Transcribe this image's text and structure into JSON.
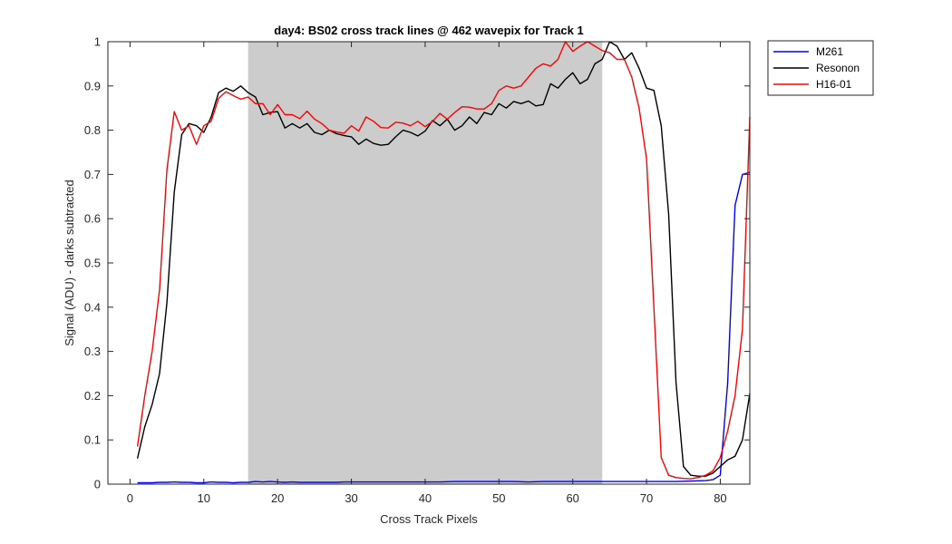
{
  "chart_data": {
    "type": "line",
    "title": "day4: BS02  cross track lines @ 462 wavepix for Track 1",
    "xlabel": "Cross Track Pixels",
    "ylabel": "Signal (ADU) - darks subtracted",
    "xlim": [
      -3,
      84
    ],
    "ylim": [
      0,
      1
    ],
    "xticks": [
      0,
      10,
      20,
      30,
      40,
      50,
      60,
      70,
      80
    ],
    "yticks": [
      0,
      0.1,
      0.2,
      0.3,
      0.4,
      0.5,
      0.6,
      0.7,
      0.8,
      0.9,
      1
    ],
    "ytick_labels": [
      "0",
      "0.1",
      "0.2",
      "0.3",
      "0.4",
      "0.5",
      "0.6",
      "0.7",
      "0.8",
      "0.9",
      "1"
    ],
    "grid": false,
    "legend_position": "outside-top-right",
    "shaded_region": {
      "x0": 16,
      "x1": 64,
      "color": "#cccccc"
    },
    "series": [
      {
        "name": "M261",
        "color": "#0000ff",
        "points": [
          [
            1,
            0.003
          ],
          [
            2,
            0.003
          ],
          [
            3,
            0.003
          ],
          [
            4,
            0.004
          ],
          [
            5,
            0.004
          ],
          [
            6,
            0.005
          ],
          [
            7,
            0.004
          ],
          [
            8,
            0.004
          ],
          [
            9,
            0.003
          ],
          [
            10,
            0.003
          ],
          [
            11,
            0.005
          ],
          [
            12,
            0.004
          ],
          [
            13,
            0.004
          ],
          [
            14,
            0.003
          ],
          [
            15,
            0.004
          ],
          [
            16,
            0.004
          ],
          [
            17,
            0.006
          ],
          [
            18,
            0.005
          ],
          [
            19,
            0.006
          ],
          [
            20,
            0.005
          ],
          [
            21,
            0.004
          ],
          [
            22,
            0.005
          ],
          [
            23,
            0.004
          ],
          [
            24,
            0.004
          ],
          [
            25,
            0.004
          ],
          [
            26,
            0.004
          ],
          [
            27,
            0.004
          ],
          [
            28,
            0.004
          ],
          [
            29,
            0.005
          ],
          [
            30,
            0.005
          ],
          [
            32,
            0.005
          ],
          [
            34,
            0.005
          ],
          [
            36,
            0.005
          ],
          [
            38,
            0.005
          ],
          [
            40,
            0.005
          ],
          [
            42,
            0.005
          ],
          [
            44,
            0.006
          ],
          [
            46,
            0.006
          ],
          [
            48,
            0.006
          ],
          [
            50,
            0.006
          ],
          [
            52,
            0.006
          ],
          [
            54,
            0.005
          ],
          [
            56,
            0.006
          ],
          [
            58,
            0.006
          ],
          [
            60,
            0.006
          ],
          [
            62,
            0.006
          ],
          [
            64,
            0.006
          ],
          [
            66,
            0.006
          ],
          [
            68,
            0.006
          ],
          [
            70,
            0.006
          ],
          [
            72,
            0.006
          ],
          [
            74,
            0.006
          ],
          [
            76,
            0.007
          ],
          [
            78,
            0.008
          ],
          [
            79,
            0.01
          ],
          [
            80,
            0.02
          ],
          [
            81,
            0.23
          ],
          [
            82,
            0.63
          ],
          [
            83,
            0.7
          ],
          [
            84,
            0.705
          ]
        ]
      },
      {
        "name": "Resonon",
        "color": "#000000",
        "points": [
          [
            1,
            0.058
          ],
          [
            2,
            0.13
          ],
          [
            3,
            0.18
          ],
          [
            4,
            0.25
          ],
          [
            5,
            0.41
          ],
          [
            6,
            0.66
          ],
          [
            7,
            0.79
          ],
          [
            8,
            0.815
          ],
          [
            9,
            0.81
          ],
          [
            10,
            0.795
          ],
          [
            11,
            0.83
          ],
          [
            12,
            0.885
          ],
          [
            13,
            0.895
          ],
          [
            14,
            0.888
          ],
          [
            15,
            0.9
          ],
          [
            16,
            0.885
          ],
          [
            17,
            0.875
          ],
          [
            18,
            0.835
          ],
          [
            19,
            0.84
          ],
          [
            20,
            0.842
          ],
          [
            21,
            0.805
          ],
          [
            22,
            0.815
          ],
          [
            23,
            0.805
          ],
          [
            24,
            0.815
          ],
          [
            25,
            0.795
          ],
          [
            26,
            0.79
          ],
          [
            27,
            0.8
          ],
          [
            28,
            0.792
          ],
          [
            29,
            0.788
          ],
          [
            30,
            0.785
          ],
          [
            31,
            0.768
          ],
          [
            32,
            0.78
          ],
          [
            33,
            0.77
          ],
          [
            34,
            0.766
          ],
          [
            35,
            0.768
          ],
          [
            36,
            0.785
          ],
          [
            37,
            0.8
          ],
          [
            38,
            0.795
          ],
          [
            39,
            0.787
          ],
          [
            40,
            0.798
          ],
          [
            41,
            0.822
          ],
          [
            42,
            0.81
          ],
          [
            43,
            0.825
          ],
          [
            44,
            0.8
          ],
          [
            45,
            0.81
          ],
          [
            46,
            0.83
          ],
          [
            47,
            0.815
          ],
          [
            48,
            0.84
          ],
          [
            49,
            0.835
          ],
          [
            50,
            0.86
          ],
          [
            51,
            0.85
          ],
          [
            52,
            0.865
          ],
          [
            53,
            0.86
          ],
          [
            54,
            0.866
          ],
          [
            55,
            0.855
          ],
          [
            56,
            0.858
          ],
          [
            57,
            0.905
          ],
          [
            58,
            0.895
          ],
          [
            59,
            0.915
          ],
          [
            60,
            0.93
          ],
          [
            61,
            0.905
          ],
          [
            62,
            0.915
          ],
          [
            63,
            0.95
          ],
          [
            64,
            0.96
          ],
          [
            65,
            1.0
          ],
          [
            66,
            0.99
          ],
          [
            67,
            0.96
          ],
          [
            68,
            0.975
          ],
          [
            69,
            0.94
          ],
          [
            70,
            0.895
          ],
          [
            71,
            0.89
          ],
          [
            72,
            0.81
          ],
          [
            73,
            0.61
          ],
          [
            74,
            0.23
          ],
          [
            75,
            0.04
          ],
          [
            76,
            0.02
          ],
          [
            77,
            0.018
          ],
          [
            78,
            0.018
          ],
          [
            79,
            0.025
          ],
          [
            80,
            0.04
          ],
          [
            81,
            0.055
          ],
          [
            82,
            0.063
          ],
          [
            83,
            0.1
          ],
          [
            84,
            0.205
          ]
        ]
      },
      {
        "name": "H16-01",
        "color": "#ff0000",
        "points": [
          [
            1,
            0.085
          ],
          [
            2,
            0.2
          ],
          [
            3,
            0.3
          ],
          [
            4,
            0.44
          ],
          [
            5,
            0.71
          ],
          [
            6,
            0.842
          ],
          [
            7,
            0.8
          ],
          [
            8,
            0.81
          ],
          [
            9,
            0.768
          ],
          [
            10,
            0.81
          ],
          [
            11,
            0.82
          ],
          [
            12,
            0.872
          ],
          [
            13,
            0.887
          ],
          [
            14,
            0.878
          ],
          [
            15,
            0.87
          ],
          [
            16,
            0.875
          ],
          [
            17,
            0.86
          ],
          [
            18,
            0.86
          ],
          [
            19,
            0.835
          ],
          [
            20,
            0.858
          ],
          [
            21,
            0.835
          ],
          [
            22,
            0.835
          ],
          [
            23,
            0.826
          ],
          [
            24,
            0.843
          ],
          [
            25,
            0.825
          ],
          [
            26,
            0.815
          ],
          [
            27,
            0.8
          ],
          [
            28,
            0.796
          ],
          [
            29,
            0.793
          ],
          [
            30,
            0.81
          ],
          [
            31,
            0.798
          ],
          [
            32,
            0.83
          ],
          [
            33,
            0.82
          ],
          [
            34,
            0.806
          ],
          [
            35,
            0.805
          ],
          [
            36,
            0.818
          ],
          [
            37,
            0.816
          ],
          [
            38,
            0.81
          ],
          [
            39,
            0.82
          ],
          [
            40,
            0.808
          ],
          [
            41,
            0.82
          ],
          [
            42,
            0.838
          ],
          [
            43,
            0.825
          ],
          [
            44,
            0.84
          ],
          [
            45,
            0.853
          ],
          [
            46,
            0.852
          ],
          [
            47,
            0.848
          ],
          [
            48,
            0.848
          ],
          [
            49,
            0.86
          ],
          [
            50,
            0.89
          ],
          [
            51,
            0.9
          ],
          [
            52,
            0.895
          ],
          [
            53,
            0.9
          ],
          [
            54,
            0.92
          ],
          [
            55,
            0.94
          ],
          [
            56,
            0.95
          ],
          [
            57,
            0.945
          ],
          [
            58,
            0.96
          ],
          [
            59,
            1.0
          ],
          [
            60,
            0.978
          ],
          [
            61,
            0.99
          ],
          [
            62,
            1.0
          ],
          [
            63,
            0.99
          ],
          [
            64,
            0.98
          ],
          [
            65,
            0.975
          ],
          [
            66,
            0.96
          ],
          [
            67,
            0.96
          ],
          [
            68,
            0.92
          ],
          [
            69,
            0.85
          ],
          [
            70,
            0.735
          ],
          [
            71,
            0.4
          ],
          [
            72,
            0.06
          ],
          [
            73,
            0.02
          ],
          [
            74,
            0.015
          ],
          [
            75,
            0.013
          ],
          [
            76,
            0.012
          ],
          [
            77,
            0.015
          ],
          [
            78,
            0.02
          ],
          [
            79,
            0.03
          ],
          [
            80,
            0.06
          ],
          [
            81,
            0.12
          ],
          [
            82,
            0.2
          ],
          [
            83,
            0.35
          ],
          [
            84,
            0.83
          ]
        ]
      }
    ]
  }
}
